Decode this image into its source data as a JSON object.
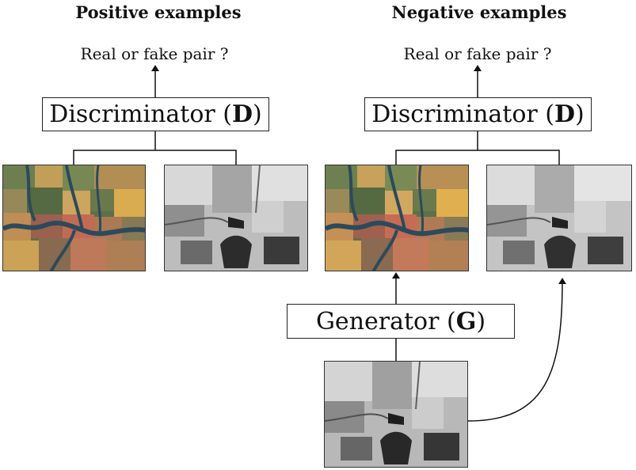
{
  "positive": {
    "heading": "Positive examples",
    "question": "Real or fake pair ?",
    "discriminator": {
      "label": "Discriminator (",
      "symbol": "D",
      "close": ")"
    }
  },
  "negative": {
    "heading": "Negative examples",
    "question": "Real or fake pair ?",
    "discriminator": {
      "label": "Discriminator (",
      "symbol": "D",
      "close": ")"
    }
  },
  "generator": {
    "label": "Generator (",
    "symbol": "G",
    "close": ")"
  }
}
